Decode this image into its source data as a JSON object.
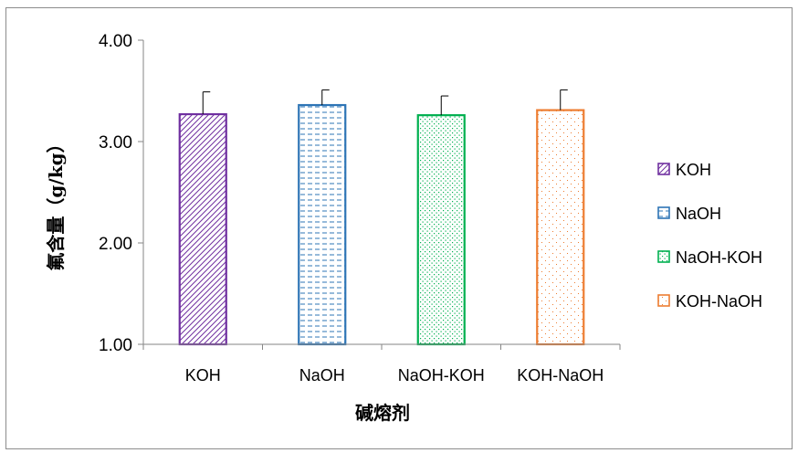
{
  "chart_data": {
    "type": "bar",
    "title": "",
    "xlabel": "碱熔剂",
    "ylabel": "氟含量（g/kg）",
    "categories": [
      "KOH",
      "NaOH",
      "NaOH-KOH",
      "KOH-NaOH"
    ],
    "series": [
      {
        "name": "KOH",
        "category": "KOH",
        "value": 3.27,
        "error": 0.22,
        "color": "#7030a0",
        "pattern": "diagonal-hatch"
      },
      {
        "name": "NaOH",
        "category": "NaOH",
        "value": 3.36,
        "error": 0.15,
        "color": "#2e75b6",
        "pattern": "horizontal-dashes"
      },
      {
        "name": "NaOH-KOH",
        "category": "NaOH-KOH",
        "value": 3.26,
        "error": 0.19,
        "color": "#00b050",
        "pattern": "diamond-dots"
      },
      {
        "name": "KOH-NaOH",
        "category": "KOH-NaOH",
        "value": 3.31,
        "error": 0.2,
        "color": "#ed7d31",
        "pattern": "sparse-dots"
      }
    ],
    "ylim": [
      1.0,
      4.0
    ],
    "yticks": [
      "1.00",
      "2.00",
      "3.00",
      "4.00"
    ],
    "grid": false,
    "legend_position": "right"
  }
}
